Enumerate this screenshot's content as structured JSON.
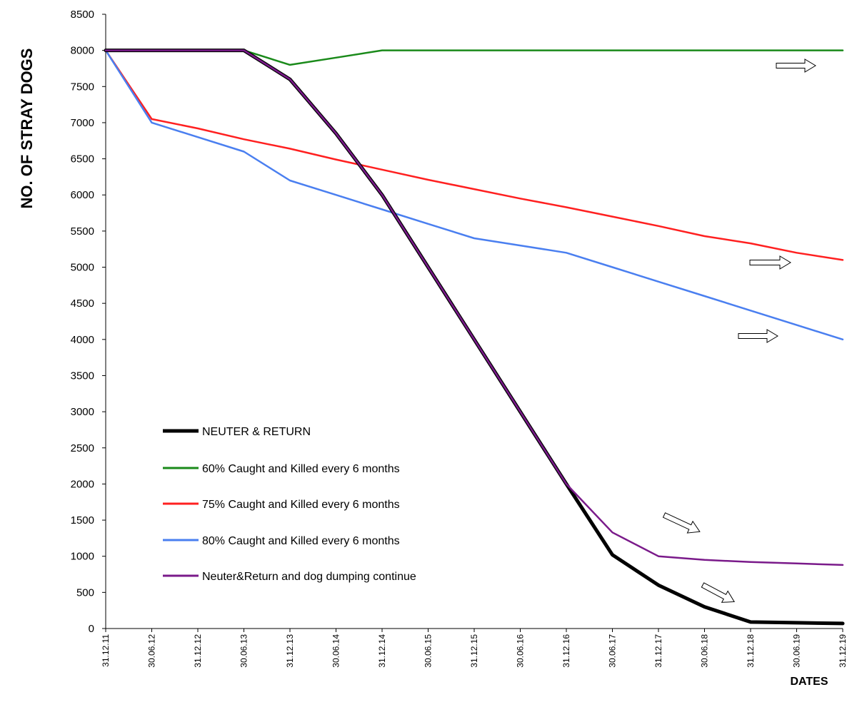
{
  "chart_data": {
    "type": "line",
    "title": "",
    "xlabel": "DATES",
    "ylabel": "NO. OF STRAY DOGS",
    "ylim": [
      0,
      8500
    ],
    "yticks": [
      0,
      500,
      1000,
      1500,
      2000,
      2500,
      3000,
      3500,
      4000,
      4500,
      5000,
      5500,
      6000,
      6500,
      7000,
      7500,
      8000,
      8500
    ],
    "categories": [
      "31.12.11",
      "30.06.12",
      "31.12.12",
      "30.06.13",
      "31.12.13",
      "30.06.14",
      "31.12.14",
      "30.06.15",
      "31.12.15",
      "30.06.16",
      "31.12.16",
      "30.06.17",
      "31.12.17",
      "30.06.18",
      "31.12.18",
      "30.06.19",
      "31.12.19"
    ],
    "grid": false,
    "legend_position": "lower-left",
    "series": [
      {
        "name": "NEUTER & RETURN",
        "color": "#000000",
        "values": [
          8000,
          8000,
          8000,
          8000,
          7600,
          6850,
          6000,
          5000,
          4000,
          3000,
          2000,
          1020,
          600,
          300,
          90,
          80,
          70
        ]
      },
      {
        "name": "60% Caught and Killed every 6 months",
        "color": "#1a8a1a",
        "values": [
          8000,
          8000,
          8000,
          8000,
          7800,
          7900,
          8000,
          8000,
          8000,
          8000,
          8000,
          8000,
          8000,
          8000,
          8000,
          8000,
          8000
        ]
      },
      {
        "name": "75% Caught and Killed every 6 months",
        "color": "#ff2020",
        "values": [
          8000,
          7050,
          6920,
          6770,
          6640,
          6490,
          6350,
          6210,
          6080,
          5950,
          5830,
          5700,
          5570,
          5430,
          5330,
          5200,
          5100
        ]
      },
      {
        "name": "80% Caught and Killed every 6 months",
        "color": "#4a7ff0",
        "values": [
          8000,
          7000,
          6800,
          6600,
          6200,
          6000,
          5800,
          5600,
          5400,
          5300,
          5200,
          5000,
          4800,
          4600,
          4400,
          4200,
          4000
        ]
      },
      {
        "name": "Neuter&Return and dog dumping continue",
        "color": "#7a1a8a",
        "values": [
          8000,
          8000,
          8000,
          8000,
          7600,
          6850,
          6000,
          5000,
          4000,
          3000,
          2000,
          1330,
          1000,
          950,
          920,
          900,
          880
        ]
      }
    ]
  }
}
